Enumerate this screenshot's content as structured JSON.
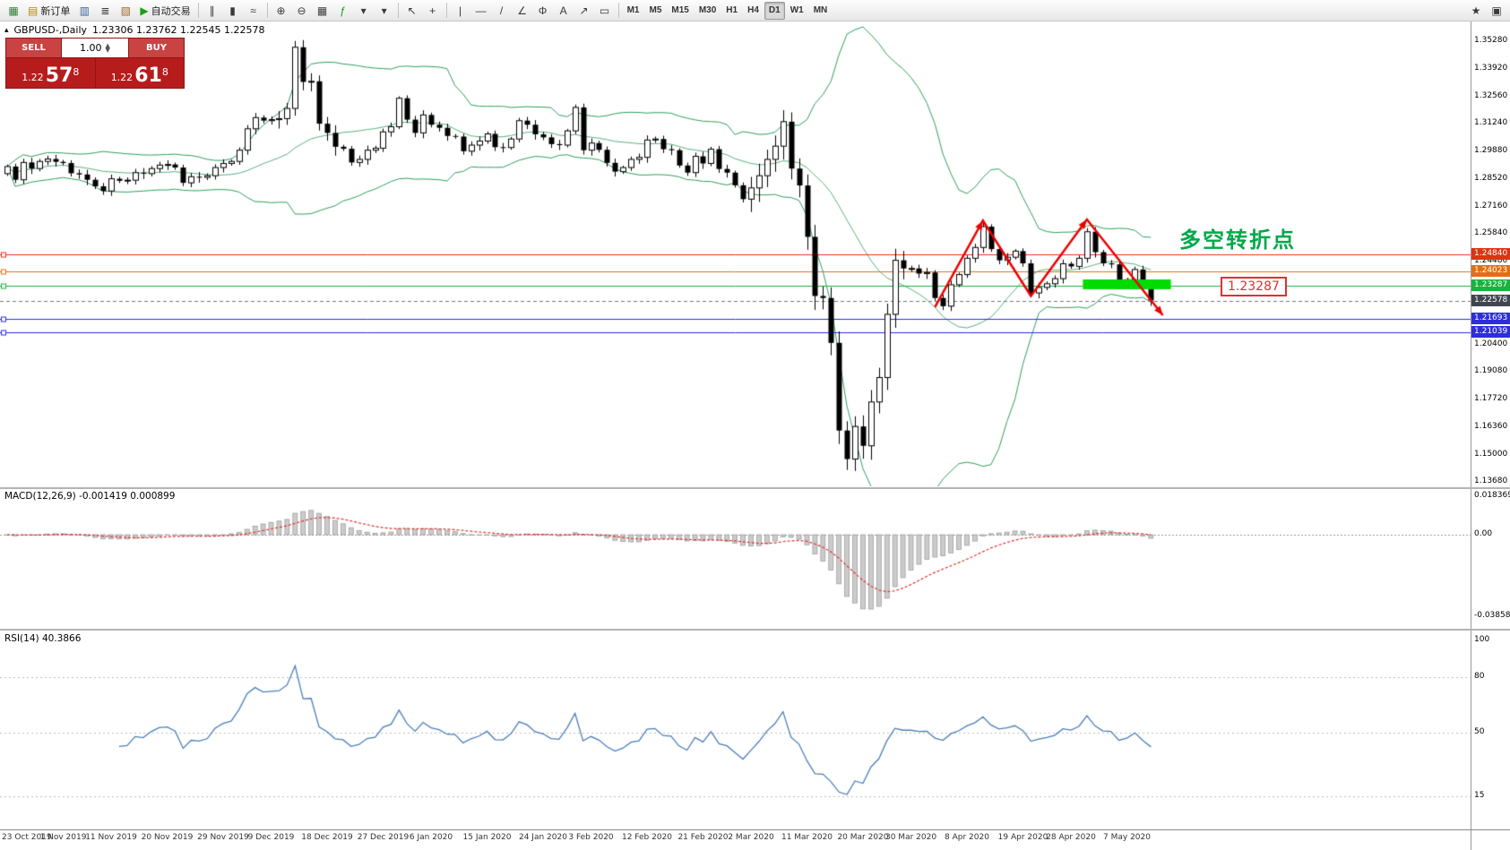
{
  "window": {
    "app": "MetaTrader terminal",
    "bg": "#ffffff"
  },
  "toolbar": {
    "left_groups": [
      {
        "items": [
          {
            "name": "new-chart-button",
            "glyph": "▦",
            "glyph_color": "#2e7d32"
          },
          {
            "name": "new-order-button",
            "glyph": "▤",
            "glyph_color": "#b58900",
            "label": "新订单"
          },
          {
            "name": "profiles-button",
            "glyph": "▥",
            "glyph_color": "#3a5fa0"
          },
          {
            "name": "market-watch-button",
            "glyph": "≣",
            "glyph_color": "#3a3a3a"
          },
          {
            "name": "data-window-button",
            "glyph": "▧",
            "glyph_color": "#a06a2c"
          },
          {
            "name": "autotrading-button",
            "glyph": "▶",
            "glyph_color": "#18a018",
            "label": "自动交易"
          }
        ]
      },
      {
        "items": [
          {
            "name": "bar-chart-button",
            "glyph": "∥"
          },
          {
            "name": "candlestick-chart-button",
            "glyph": "▮"
          },
          {
            "name": "line-chart-button",
            "glyph": "≈"
          }
        ]
      },
      {
        "items": [
          {
            "name": "zoom-in-button",
            "glyph": "⊕"
          },
          {
            "name": "zoom-out-button",
            "glyph": "⊖"
          },
          {
            "name": "tile-windows-button",
            "glyph": "▦"
          },
          {
            "name": "indicators-button",
            "glyph": "ƒ",
            "glyph_color": "#18a018"
          },
          {
            "name": "periods-dropdown",
            "glyph": "▾"
          },
          {
            "name": "templates-dropdown",
            "glyph": "▾"
          }
        ]
      },
      {
        "items": [
          {
            "name": "cursor-button",
            "glyph": "↖"
          },
          {
            "name": "crosshair-button",
            "glyph": "+"
          }
        ]
      },
      {
        "items": [
          {
            "name": "vertical-line-button",
            "glyph": "|"
          },
          {
            "name": "horizontal-line-button",
            "glyph": "—"
          },
          {
            "name": "trendline-button",
            "glyph": "/"
          },
          {
            "name": "channel-button",
            "glyph": "∠"
          },
          {
            "name": "fibonacci-button",
            "glyph": "Φ"
          },
          {
            "name": "text-button",
            "glyph": "A"
          },
          {
            "name": "arrow-tools-button",
            "glyph": "↗"
          },
          {
            "name": "shapes-button",
            "glyph": "▭"
          }
        ]
      }
    ],
    "timeframes": [
      {
        "label": "M1"
      },
      {
        "label": "M5"
      },
      {
        "label": "M15"
      },
      {
        "label": "M30"
      },
      {
        "label": "H1"
      },
      {
        "label": "H4"
      },
      {
        "label": "D1",
        "active": true
      },
      {
        "label": "W1"
      },
      {
        "label": "MN"
      }
    ],
    "right_items": [
      {
        "name": "favorites-button",
        "glyph": "★"
      },
      {
        "name": "chart-properties-button",
        "glyph": "▣"
      }
    ]
  },
  "chart": {
    "icon_glyph": "▴",
    "symbol_period": "GBPUSD-,Daily",
    "ohlc_text": "1.23306 1.23762 1.22545 1.22578"
  },
  "trade_panel": {
    "sell_label": "SELL",
    "buy_label": "BUY",
    "volume": "1.00",
    "spinner_up": "▲",
    "spinner_down": "▼",
    "sell_price_prefix": "1.22",
    "sell_price_big": "57",
    "sell_price_sup": "8",
    "buy_price_prefix": "1.22",
    "buy_price_big": "61",
    "buy_price_sup": "8",
    "panel_red": "#b71c1c"
  },
  "chart_data": {
    "type": "candlestick",
    "symbol": "GBPUSD",
    "timeframe": "Daily",
    "ohlc_header": {
      "open": "1.23306",
      "high": "1.23762",
      "low": "1.22545",
      "close": "1.22578"
    },
    "candles": {
      "first_open": 1.288,
      "closes": [
        1.2915,
        1.285,
        1.2935,
        1.2905,
        1.294,
        1.2952,
        1.2938,
        1.2932,
        1.2882,
        1.2876,
        1.285,
        1.2818,
        1.2795,
        1.2855,
        1.2845,
        1.2848,
        1.2885,
        1.288,
        1.2905,
        1.2922,
        1.2925,
        1.291,
        1.2835,
        1.2865,
        1.2862,
        1.287,
        1.291,
        1.293,
        1.294,
        1.2995,
        1.31,
        1.3155,
        1.314,
        1.3145,
        1.315,
        1.32,
        1.35,
        1.333,
        1.3333,
        1.3125,
        1.308,
        1.3012,
        1.3002,
        1.2935,
        1.295,
        1.2995,
        1.3005,
        1.3085,
        1.311,
        1.325,
        1.3145,
        1.308,
        1.3168,
        1.312,
        1.3105,
        1.3065,
        1.3062,
        1.299,
        1.302,
        1.304,
        1.3075,
        1.301,
        1.3008,
        1.305,
        1.314,
        1.312,
        1.3073,
        1.3058,
        1.3025,
        1.302,
        1.309,
        1.3205,
        1.2995,
        1.303,
        1.2997,
        1.2933,
        1.289,
        1.291,
        1.295,
        1.296,
        1.3045,
        1.305,
        1.3,
        1.2995,
        1.292,
        1.2885,
        1.2965,
        1.293,
        1.3,
        1.2903,
        1.2885,
        1.2823,
        1.2755,
        1.281,
        1.287,
        1.295,
        1.3015,
        1.3135,
        1.2905,
        1.2822,
        1.257,
        1.228,
        1.227,
        1.205,
        1.162,
        1.148,
        1.164,
        1.1545,
        1.176,
        1.188,
        1.219,
        1.2455,
        1.2415,
        1.2415,
        1.239,
        1.2395,
        1.227,
        1.223,
        1.2335,
        1.2385,
        1.2465,
        1.2518,
        1.262,
        1.251,
        1.2455,
        1.247,
        1.25,
        1.244,
        1.2295,
        1.2322,
        1.234,
        1.2365,
        1.2438,
        1.2425,
        1.2465,
        1.2595,
        1.2495,
        1.244,
        1.2435,
        1.234,
        1.236,
        1.241,
        1.233,
        1.2258
      ]
    },
    "bollinger": {
      "period": 20,
      "deviation": 2,
      "color": "#2e9e5b"
    },
    "price_axis_labels": [
      "1.35280",
      "1.33920",
      "1.32560",
      "1.31240",
      "1.29880",
      "1.28520",
      "1.27160",
      "1.25840",
      "1.24480",
      "1.20400",
      "1.19080",
      "1.17720",
      "1.16360",
      "1.15000",
      "1.13680"
    ],
    "hlines": [
      {
        "price": 1.2484,
        "label": "1.24840",
        "color": "#e03214"
      },
      {
        "price": 1.24023,
        "label": "1.24023",
        "color": "#e07014"
      },
      {
        "price": 1.23287,
        "label": "1.23287",
        "color": "#17b33c"
      },
      {
        "price": 1.21693,
        "label": "1.21693",
        "color": "#2d2dde"
      },
      {
        "price": 1.21039,
        "label": "1.21039",
        "color": "#2d2dde"
      }
    ],
    "current_price": {
      "price": 1.22578,
      "label": "1.22578",
      "bg": "#3f4650"
    },
    "macd": {
      "label_full": "MACD(12,26,9) -0.001419 0.000899",
      "main_value": "-0.001419",
      "signal_value": "0.000899",
      "axis_labels": [
        "0.018369",
        "0.00",
        "-0.038585"
      ],
      "bar_fill": "#cbcbcb",
      "bar_stroke": "#9c9c9c",
      "signal_color": "#e03030"
    },
    "rsi": {
      "label_full": "RSI(14) 40.3866",
      "value_text": "40.3866",
      "axis_labels": [
        "100",
        "80",
        "50",
        "15"
      ],
      "levels": [
        80,
        50,
        15
      ],
      "line_color": "#4a7ebb"
    },
    "annotations": {
      "zigzag": {
        "color": "#ee0000",
        "points": [
          [
            116,
            1.2225
          ],
          [
            122,
            1.265
          ],
          [
            128,
            1.228
          ],
          [
            135,
            1.2655
          ],
          [
            144.5,
            1.2185
          ]
        ]
      },
      "highlight": {
        "color": "#00dc00",
        "from_idx": 134.5,
        "to_idx": 145.5,
        "price_top": 1.2361,
        "price_bottom": 1.2313
      },
      "cn_text": {
        "text": "多空转折点",
        "color": "#00a84a"
      },
      "callout": {
        "text": "1.23287",
        "color": "#e03030"
      }
    },
    "x_labels": [
      {
        "idx": 0,
        "text": "23 Oct 2019"
      },
      {
        "idx": 7,
        "text": "1 Nov 2019"
      },
      {
        "idx": 13,
        "text": "11 Nov 2019"
      },
      {
        "idx": 20,
        "text": "20 Nov 2019"
      },
      {
        "idx": 27,
        "text": "29 Nov 2019"
      },
      {
        "idx": 33,
        "text": "9 Dec 2019"
      },
      {
        "idx": 40,
        "text": "18 Dec 2019"
      },
      {
        "idx": 47,
        "text": "27 Dec 2019"
      },
      {
        "idx": 53,
        "text": "6 Jan 2020"
      },
      {
        "idx": 60,
        "text": "15 Jan 2020"
      },
      {
        "idx": 67,
        "text": "24 Jan 2020"
      },
      {
        "idx": 73,
        "text": "3 Feb 2020"
      },
      {
        "idx": 80,
        "text": "12 Feb 2020"
      },
      {
        "idx": 87,
        "text": "21 Feb 2020"
      },
      {
        "idx": 93,
        "text": "2 Mar 2020"
      },
      {
        "idx": 100,
        "text": "11 Mar 2020"
      },
      {
        "idx": 107,
        "text": "20 Mar 2020"
      },
      {
        "idx": 113,
        "text": "30 Mar 2020"
      },
      {
        "idx": 120,
        "text": "8 Apr 2020"
      },
      {
        "idx": 127,
        "text": "19 Apr 2020"
      },
      {
        "idx": 133,
        "text": "28 Apr 2020"
      },
      {
        "idx": 140,
        "text": "7 May 2020"
      }
    ]
  }
}
